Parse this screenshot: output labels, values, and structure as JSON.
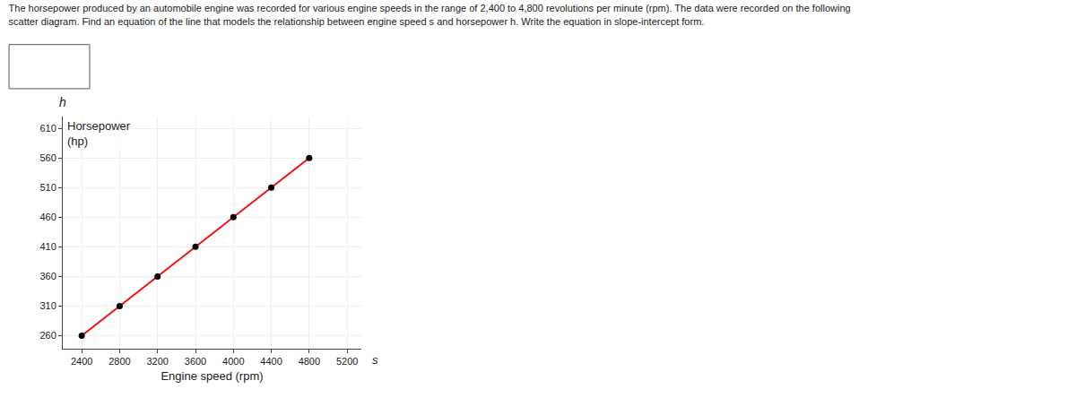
{
  "chart_data": {
    "type": "scatter",
    "title": "The horsepower produced by an automobile engine was recorded for various engine speeds in the range of 2,400 to 4,800 revolutions per minute (rpm). The data were recorded on the following",
    "subtitle": "scatter diagram. Find an equation of the line that models the relationship between engine speed s and horsepower h. Write the equation in slope-intercept form.",
    "xlabel": "Engine speed (rpm)",
    "ylabel": [
      "Horsepower",
      "(hp)"
    ],
    "annotations": [
      {
        "text": "h",
        "axis": "y"
      },
      {
        "text": "s",
        "axis": "x"
      }
    ],
    "x": [
      2400,
      2800,
      3200,
      3600,
      4000,
      4400,
      4800
    ],
    "series": [
      {
        "type": "line",
        "color": "#ff0000",
        "values": [
          260,
          310,
          360,
          410,
          460,
          510,
          560
        ]
      },
      {
        "type": "scatter",
        "color": "#000000",
        "values": [
          260,
          310,
          360,
          410,
          460,
          510,
          560
        ]
      }
    ],
    "xlim": [
      2200,
      5350
    ],
    "ylim": [
      238,
      630
    ],
    "xticks": [
      2400,
      2800,
      3200,
      3600,
      4000,
      4400,
      4800,
      5200
    ],
    "yticks": [
      260,
      310,
      360,
      410,
      460,
      510,
      560,
      610
    ],
    "grid": true
  }
}
